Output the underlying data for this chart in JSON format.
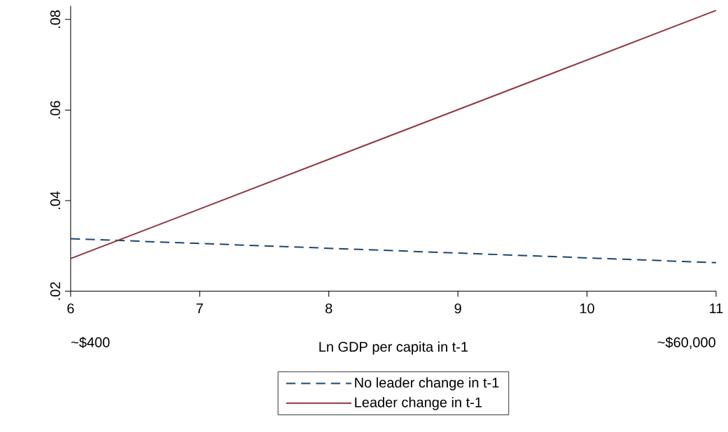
{
  "chart_data": {
    "type": "line",
    "xlabel": "Ln GDP per capita in t-1",
    "x": [
      6,
      11
    ],
    "series": [
      {
        "name": "No leader change in t-1",
        "color": "#1a476f",
        "line_style": "dashed",
        "values": [
          0.0316,
          0.0263
        ]
      },
      {
        "name": "Leader change in t-1",
        "color": "#90353b",
        "line_style": "solid",
        "values": [
          0.0272,
          0.082
        ]
      }
    ],
    "xlim": [
      6,
      11
    ],
    "ylim": [
      0.02,
      0.083
    ],
    "xticks": [
      6,
      7,
      8,
      9,
      10,
      11
    ],
    "yticks": [
      {
        "value": 0.02,
        "label": ".02"
      },
      {
        "value": 0.04,
        "label": ".04"
      },
      {
        "value": 0.06,
        "label": ".06"
      },
      {
        "value": 0.08,
        "label": ".08"
      }
    ],
    "annotations": [
      "~$400",
      "~$60,000"
    ],
    "legend": "bottom"
  }
}
